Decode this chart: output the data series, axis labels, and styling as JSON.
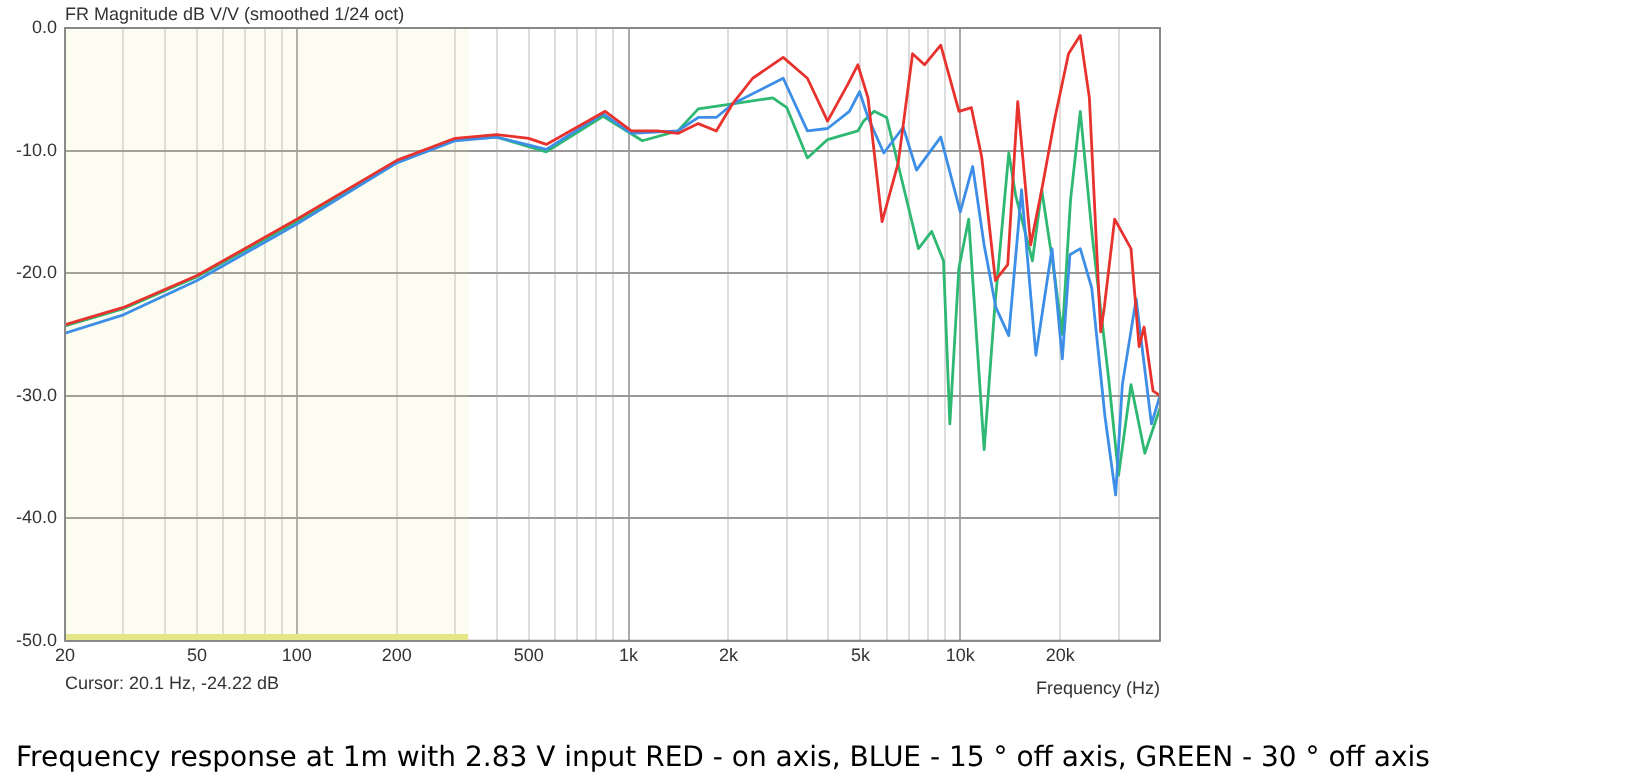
{
  "chart_data": {
    "type": "line",
    "title": "FR Magnitude dB V/V (smoothed 1/24 oct)",
    "xlabel": "Frequency (Hz)",
    "annotations": [
      "Cursor: 20.1 Hz, -24.22 dB",
      "Frequency response at 1m with 2.83 V input RED - on axis, BLUE - 15 ° off axis, GREEN - 30 ° off axis"
    ],
    "log": "x",
    "grid": true,
    "legend": false,
    "marker": "none",
    "line_style": "solid",
    "xlim": [
      20,
      40000
    ],
    "ylim": [
      -50,
      0
    ],
    "xticks": [
      20,
      {
        "value": 30,
        "label": null
      },
      {
        "value": 40,
        "label": null
      },
      50,
      {
        "value": 60,
        "label": null
      },
      {
        "value": 70,
        "label": null
      },
      {
        "value": 80,
        "label": null
      },
      {
        "value": 90,
        "label": null
      },
      100,
      200,
      {
        "value": 300,
        "label": null
      },
      {
        "value": 400,
        "label": null
      },
      500,
      {
        "value": 600,
        "label": null
      },
      {
        "value": 700,
        "label": null
      },
      {
        "value": 800,
        "label": null
      },
      {
        "value": 900,
        "label": null
      },
      {
        "value": 1000,
        "label": "1k"
      },
      {
        "value": 2000,
        "label": "2k"
      },
      {
        "value": 3000,
        "label": null
      },
      {
        "value": 4000,
        "label": null
      },
      {
        "value": 5000,
        "label": "5k"
      },
      {
        "value": 6000,
        "label": null
      },
      {
        "value": 7000,
        "label": null
      },
      {
        "value": 8000,
        "label": null
      },
      {
        "value": 9000,
        "label": null
      },
      {
        "value": 10000,
        "label": "10k"
      },
      {
        "value": 20000,
        "label": "20k"
      },
      {
        "value": 30000,
        "label": null
      }
    ],
    "yticks": [
      {
        "value": -50,
        "label": "-50.0"
      },
      {
        "value": -40,
        "label": "-40.0"
      },
      {
        "value": -30,
        "label": "-30.0"
      },
      {
        "value": -20,
        "label": "-20.0"
      },
      {
        "value": -10,
        "label": "-10.0"
      },
      {
        "value": 0,
        "label": "0.0"
      }
    ],
    "bands": [
      {
        "axis": "x",
        "from": 20,
        "to": 330,
        "color": "#e6e68a"
      }
    ],
    "series": [
      {
        "color": "#e8322e",
        "x": [
          20,
          30,
          50,
          100,
          200,
          300,
          400,
          500,
          565,
          850,
          1019,
          1224,
          1408,
          1622,
          1838,
          2057,
          2367,
          2925,
          3460,
          3980,
          4580,
          4910,
          5270,
          5810,
          6500,
          7180,
          7800,
          8730,
          9910,
          10800,
          11600,
          12760,
          13900,
          14900,
          16300,
          17600,
          19300,
          21200,
          23000,
          24500,
          26500,
          27200,
          29200,
          32700,
          34600,
          35800,
          38100,
          40000
        ],
        "values": [
          -24.2,
          -22.8,
          -20.2,
          -15.6,
          -10.8,
          -9.0,
          -8.7,
          -9.0,
          -9.5,
          -6.8,
          -8.4,
          -8.4,
          -8.6,
          -7.8,
          -8.4,
          -6.2,
          -4.1,
          -2.4,
          -4.1,
          -7.6,
          -4.6,
          -3.0,
          -5.7,
          -15.8,
          -11.0,
          -2.1,
          -3.0,
          -1.4,
          -6.8,
          -6.5,
          -10.5,
          -20.6,
          -19.3,
          -6.0,
          -17.7,
          -13.2,
          -7.3,
          -2.1,
          -0.6,
          -5.7,
          -24.8,
          -22.7,
          -15.6,
          -18.0,
          -26.0,
          -24.4,
          -29.6,
          -30.0
        ]
      },
      {
        "color": "#3c8ee6",
        "x": [
          20,
          30,
          50,
          100,
          200,
          300,
          400,
          565,
          838,
          1019,
          1408,
          1622,
          1838,
          2057,
          2925,
          3460,
          3980,
          4630,
          4970,
          5270,
          5880,
          6730,
          7380,
          8730,
          10000,
          10900,
          11800,
          12800,
          14000,
          15300,
          16900,
          18900,
          20300,
          21400,
          23000,
          24900,
          27300,
          29400,
          30800,
          33900,
          37700,
          40000
        ],
        "values": [
          -24.9,
          -23.4,
          -20.6,
          -16.0,
          -11.0,
          -9.2,
          -8.9,
          -9.9,
          -7.0,
          -8.6,
          -8.4,
          -7.3,
          -7.3,
          -6.2,
          -4.1,
          -8.4,
          -8.2,
          -6.8,
          -5.2,
          -7.3,
          -10.2,
          -8.1,
          -11.6,
          -8.9,
          -15.0,
          -11.3,
          -17.7,
          -22.8,
          -25.1,
          -13.2,
          -26.7,
          -18.0,
          -27.0,
          -18.5,
          -18.0,
          -21.2,
          -31.7,
          -38.1,
          -29.1,
          -22.1,
          -32.3,
          -30.0
        ]
      },
      {
        "color": "#2eb872",
        "x": [
          20,
          30,
          50,
          100,
          200,
          300,
          400,
          565,
          838,
          1100,
          1408,
          1622,
          2057,
          2720,
          3000,
          3460,
          3980,
          4910,
          5110,
          5500,
          6000,
          7480,
          8200,
          8900,
          9300,
          9900,
          10600,
          11800,
          12700,
          14000,
          14700,
          16500,
          17600,
          19200,
          20300,
          21500,
          23000,
          25000,
          28000,
          30000,
          32700,
          36000,
          40000
        ],
        "values": [
          -24.3,
          -22.9,
          -20.3,
          -15.8,
          -11.0,
          -9.1,
          -8.9,
          -10.1,
          -7.2,
          -9.2,
          -8.4,
          -6.6,
          -6.2,
          -5.7,
          -6.5,
          -10.6,
          -9.1,
          -8.4,
          -7.6,
          -6.8,
          -7.3,
          -18.0,
          -16.6,
          -19.0,
          -32.3,
          -19.6,
          -15.6,
          -34.4,
          -22.8,
          -10.2,
          -13.7,
          -19.0,
          -13.2,
          -20.0,
          -25.0,
          -14.0,
          -6.8,
          -17.0,
          -28.6,
          -36.5,
          -29.1,
          -34.7,
          -31.0
        ]
      }
    ]
  }
}
